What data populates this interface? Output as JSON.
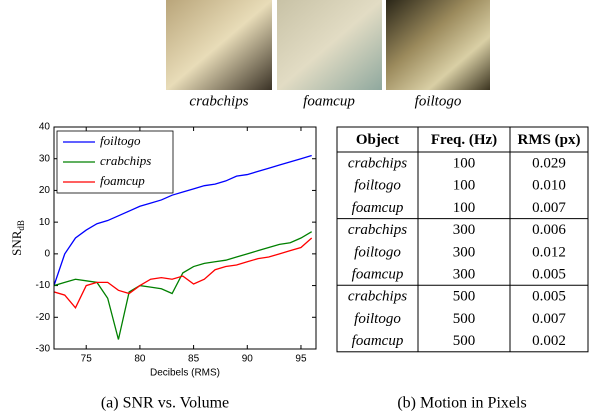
{
  "images": [
    {
      "caption": "crabchips"
    },
    {
      "caption": "foamcup"
    },
    {
      "caption": "foiltogo"
    }
  ],
  "chart_data": {
    "type": "line",
    "xlabel": "Decibels (RMS)",
    "ylabel": {
      "text": "SNR",
      "subscript": "dB"
    },
    "x": [
      72,
      73,
      74,
      75,
      76,
      77,
      78,
      79,
      80,
      81,
      82,
      83,
      84,
      85,
      86,
      87,
      88,
      89,
      90,
      91,
      92,
      93,
      94,
      95,
      96
    ],
    "series": [
      {
        "name": "foiltogo",
        "color": "#0000ff",
        "values": [
          -10,
          0,
          5,
          7.5,
          9.5,
          10.5,
          12,
          13.5,
          15,
          16,
          17,
          18.5,
          19.5,
          20.5,
          21.5,
          22,
          23,
          24.5,
          25,
          26,
          27,
          28,
          29,
          30,
          31
        ]
      },
      {
        "name": "crabchips",
        "color": "#008000",
        "values": [
          -10,
          -9,
          -8,
          -8.5,
          -9,
          -14,
          -27,
          -12,
          -10,
          -10.5,
          -11,
          -12.5,
          -6,
          -4,
          -3,
          -2.5,
          -2,
          -1,
          0,
          1,
          2,
          3,
          3.5,
          5,
          7
        ]
      },
      {
        "name": "foamcup",
        "color": "#ff0000",
        "values": [
          -12,
          -13,
          -17,
          -10,
          -9,
          -9,
          -11.5,
          -12.5,
          -10,
          -8,
          -7.5,
          -8,
          -7,
          -9.5,
          -8,
          -5,
          -4,
          -3.5,
          -2.5,
          -1.5,
          -1,
          0,
          1,
          2,
          5
        ]
      }
    ],
    "xlim": [
      72,
      96.4
    ],
    "ylim": [
      -30,
      40
    ],
    "xticks": [
      75,
      80,
      85,
      90,
      95
    ],
    "yticks": [
      -30,
      -20,
      -10,
      0,
      10,
      20,
      30,
      40
    ],
    "legend": "upper-left",
    "caption": "(a) SNR vs. Volume"
  },
  "table": {
    "header": [
      "Object",
      "Freq. (Hz)",
      "RMS (px)"
    ],
    "rows": [
      [
        "crabchips",
        "100",
        "0.029"
      ],
      [
        "foiltogo",
        "100",
        "0.010"
      ],
      [
        "foamcup",
        "100",
        "0.007"
      ],
      [
        "crabchips",
        "300",
        "0.006"
      ],
      [
        "foiltogo",
        "300",
        "0.012"
      ],
      [
        "foamcup",
        "300",
        "0.005"
      ],
      [
        "crabchips",
        "500",
        "0.005"
      ],
      [
        "foiltogo",
        "500",
        "0.007"
      ],
      [
        "foamcup",
        "500",
        "0.002"
      ]
    ],
    "caption": "(b) Motion in Pixels"
  }
}
